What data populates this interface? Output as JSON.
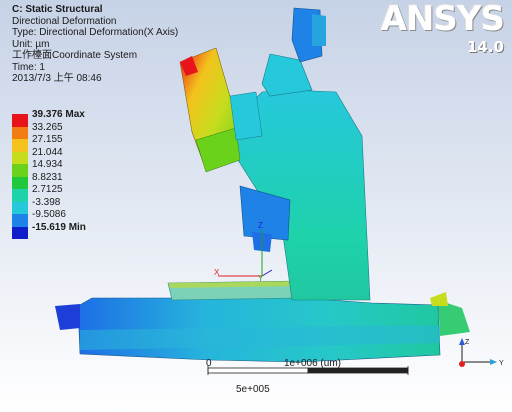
{
  "info": {
    "title": "C: Static Structural",
    "line1": "Directional Deformation",
    "line2": "Type: Directional Deformation(X Axis)",
    "line3": "Unit: µm",
    "line4": "工作檯面Coordinate System",
    "line5": "Time: 1",
    "line6": "2013/7/3 上午 08:46"
  },
  "logo": {
    "brand": "ANSYS",
    "version": "14.0"
  },
  "legend": [
    {
      "label": "39.376 Max",
      "color": "#e8141c",
      "bold": true
    },
    {
      "label": "33.265",
      "color": "#f27d12",
      "bold": false
    },
    {
      "label": "27.155",
      "color": "#f3c21c",
      "bold": false
    },
    {
      "label": "21.044",
      "color": "#c8dc1e",
      "bold": false
    },
    {
      "label": "14.934",
      "color": "#6ad21a",
      "bold": false
    },
    {
      "label": "8.8231",
      "color": "#20c83c",
      "bold": false
    },
    {
      "label": "2.7125",
      "color": "#1ed2aa",
      "bold": false
    },
    {
      "label": "-3.398",
      "color": "#26c8dc",
      "bold": false
    },
    {
      "label": "-9.5086",
      "color": "#1e82e6",
      "bold": false
    },
    {
      "label": "-15.619 Min",
      "color": "#0f1ec8",
      "bold": true
    }
  ],
  "scale": {
    "zero": "0",
    "max": "1e+006 (um)",
    "mid": "5e+005"
  },
  "triad": {
    "z": "Z",
    "y": "Y",
    "x": "X"
  },
  "model_axes": {
    "x": "X",
    "y": "Y",
    "z": "Z"
  }
}
